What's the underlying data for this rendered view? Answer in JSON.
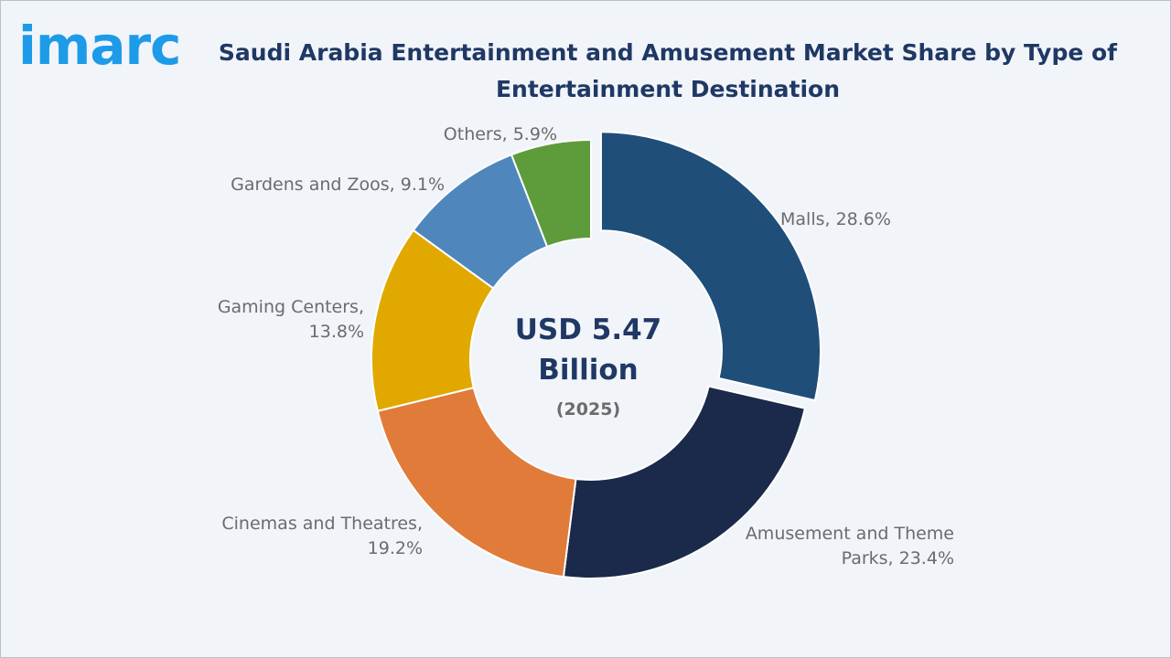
{
  "brand": {
    "logo_text": "imarc",
    "logo_color": "#1d9be8"
  },
  "chart_data": {
    "type": "pie",
    "title": "Saudi Arabia Entertainment and Amusement Market Share by Type of Entertainment Destination",
    "center_value": "USD 5.47 Billion",
    "center_value_lines": [
      "USD 5.47",
      "Billion"
    ],
    "center_year": "(2025)",
    "unit": "%",
    "slices": [
      {
        "name": "Malls",
        "value": 28.6,
        "color": "#1f4e79",
        "label_lines": [
          "Malls, 28.6%"
        ],
        "exploded": true
      },
      {
        "name": "Amusement and Theme Parks",
        "value": 23.4,
        "color": "#1b2a4a",
        "label_lines": [
          "Amusement and Theme",
          "Parks, 23.4%"
        ]
      },
      {
        "name": "Cinemas and Theatres",
        "value": 19.2,
        "color": "#e07b39",
        "label_lines": [
          "Cinemas and Theatres,",
          "19.2%"
        ]
      },
      {
        "name": "Gaming Centers",
        "value": 13.8,
        "color": "#e1a900",
        "label_lines": [
          "Gaming Centers,",
          "13.8%"
        ]
      },
      {
        "name": "Gardens and Zoos",
        "value": 9.1,
        "color": "#4f87bd",
        "label_lines": [
          "Gardens and Zoos, 9.1%"
        ]
      },
      {
        "name": "Others",
        "value": 5.9,
        "color": "#5e9b3a",
        "label_lines": [
          "Others, 5.9%"
        ]
      }
    ]
  }
}
